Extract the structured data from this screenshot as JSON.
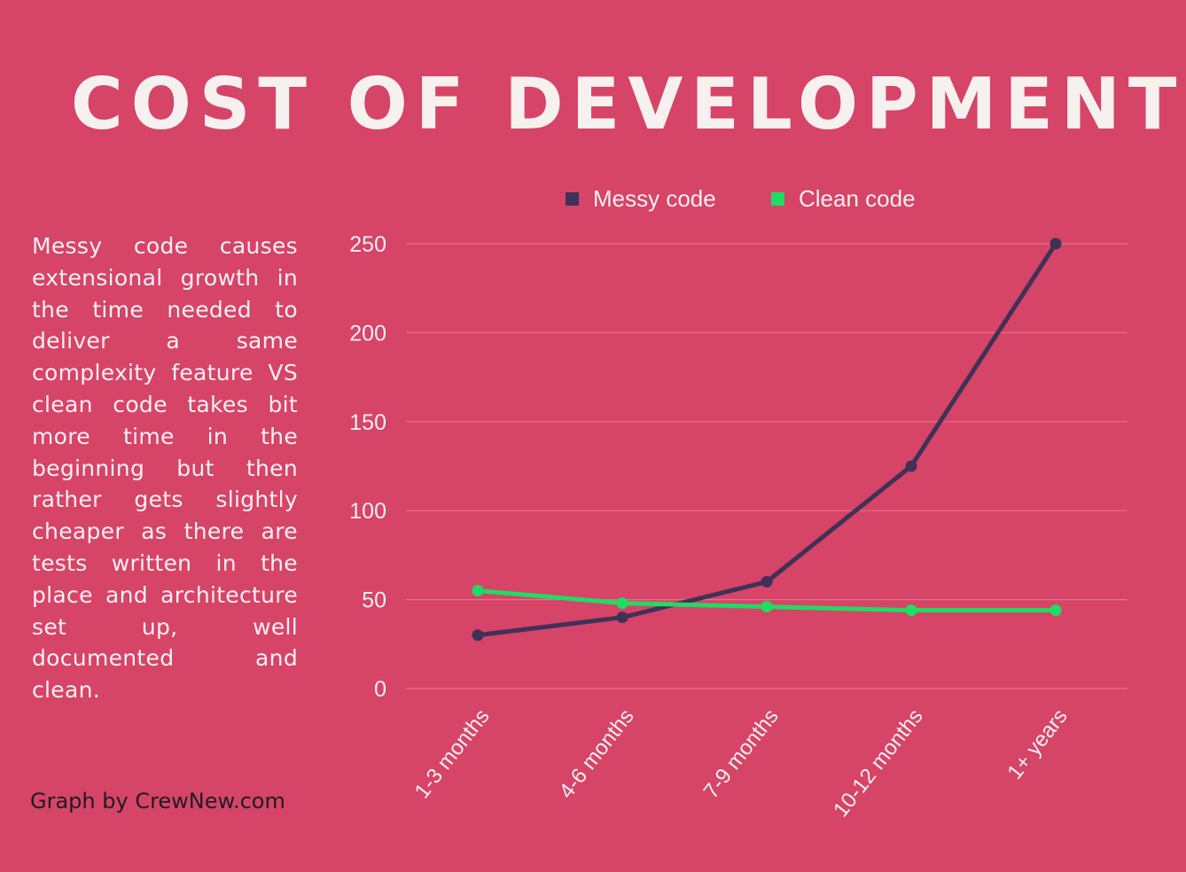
{
  "title": "COST OF DEVELOPMENT",
  "description": "Messy code causes extensional growth in the time needed to deliver a same complexity feature VS clean code takes bit more time in the beginning but then rather gets slightly cheaper as there are tests written in the place and architecture set up, well documented and clean.",
  "credit": "Graph by CrewNew.com",
  "colors": {
    "background": "#d64468",
    "messy": "#3f3158",
    "clean": "#1fdc63",
    "gridline": "#e6708c"
  },
  "chart_data": {
    "type": "line",
    "categories": [
      "1-3 months",
      "4-6 months",
      "7-9 months",
      "10-12 months",
      "1+ years"
    ],
    "series": [
      {
        "name": "Messy code",
        "values": [
          30,
          40,
          60,
          125,
          250
        ],
        "color": "#3f3158"
      },
      {
        "name": "Clean code",
        "values": [
          55,
          48,
          46,
          44,
          44
        ],
        "color": "#1fdc63"
      }
    ],
    "yticks": [
      0,
      50,
      100,
      150,
      200,
      250
    ],
    "ylim": [
      0,
      250
    ],
    "grid": true,
    "legend_position": "top"
  }
}
